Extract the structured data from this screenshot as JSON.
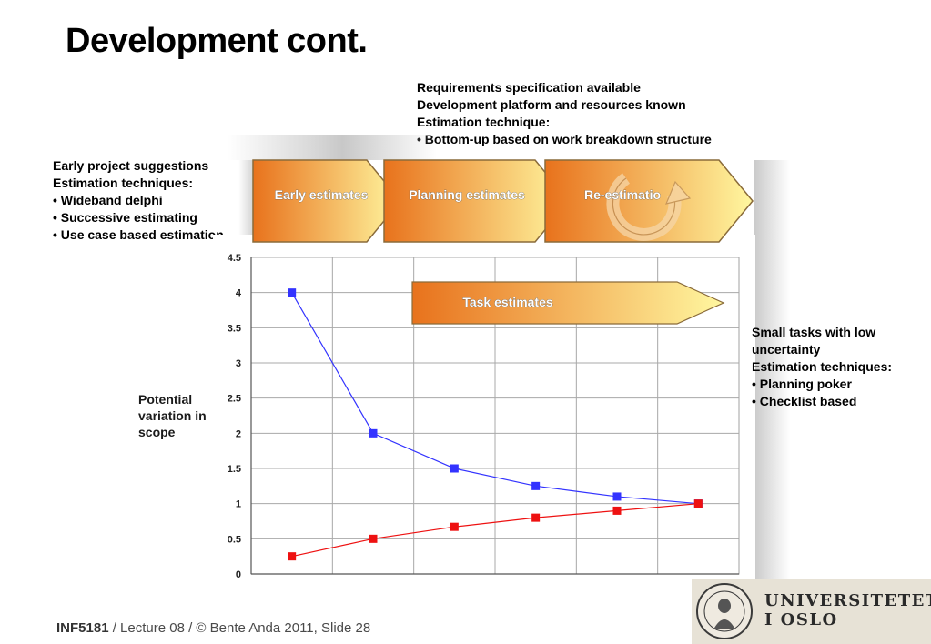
{
  "slide": {
    "title": "Development cont.",
    "top_text": [
      "Requirements specification available",
      "Development platform and resources known",
      "Estimation technique:",
      "• Bottom-up based on work breakdown structure"
    ],
    "left_text": [
      "Early project suggestions",
      "Estimation techniques:",
      "• Wideband delphi",
      "• Successive estimating",
      "• Use case based estimation"
    ],
    "right_text": [
      "Small tasks with low uncertainty",
      "Estimation techniques:",
      "• Planning poker",
      "• Checklist based"
    ],
    "phases": [
      "Early estimates",
      "Planning estimates",
      "Re-estimatio"
    ],
    "task_arrow": "Task estimates",
    "y_axis_label_lines": [
      "Potential",
      "variation in",
      "scope"
    ],
    "footer": {
      "course": "INF5181",
      "rest": " / Lecture 08 / © Bente Anda 2011, Slide 28"
    },
    "logo": {
      "line1": "UNIVERSITETET",
      "line2": "I OSLO"
    }
  },
  "chart_data": {
    "type": "line",
    "x": [
      1,
      2,
      3,
      4,
      5,
      6
    ],
    "series": [
      {
        "values": [
          4,
          2,
          1.5,
          1.25,
          1.1,
          1
        ],
        "color": "#3333ff"
      },
      {
        "values": [
          0.25,
          0.5,
          0.67,
          0.8,
          0.9,
          1
        ],
        "color": "#ee1111"
      }
    ],
    "ylabel": "Potential variation in scope",
    "ylim": [
      0,
      4.5
    ],
    "yticks": [
      "0",
      "0.5",
      "1",
      "1.5",
      "2",
      "2.5",
      "3",
      "3.5",
      "4",
      "4.5"
    ],
    "grid": true
  },
  "colors": {
    "phase_start": "#e8721c",
    "phase_end": "#fff7a0",
    "phase_stroke": "#8a6b3a"
  }
}
